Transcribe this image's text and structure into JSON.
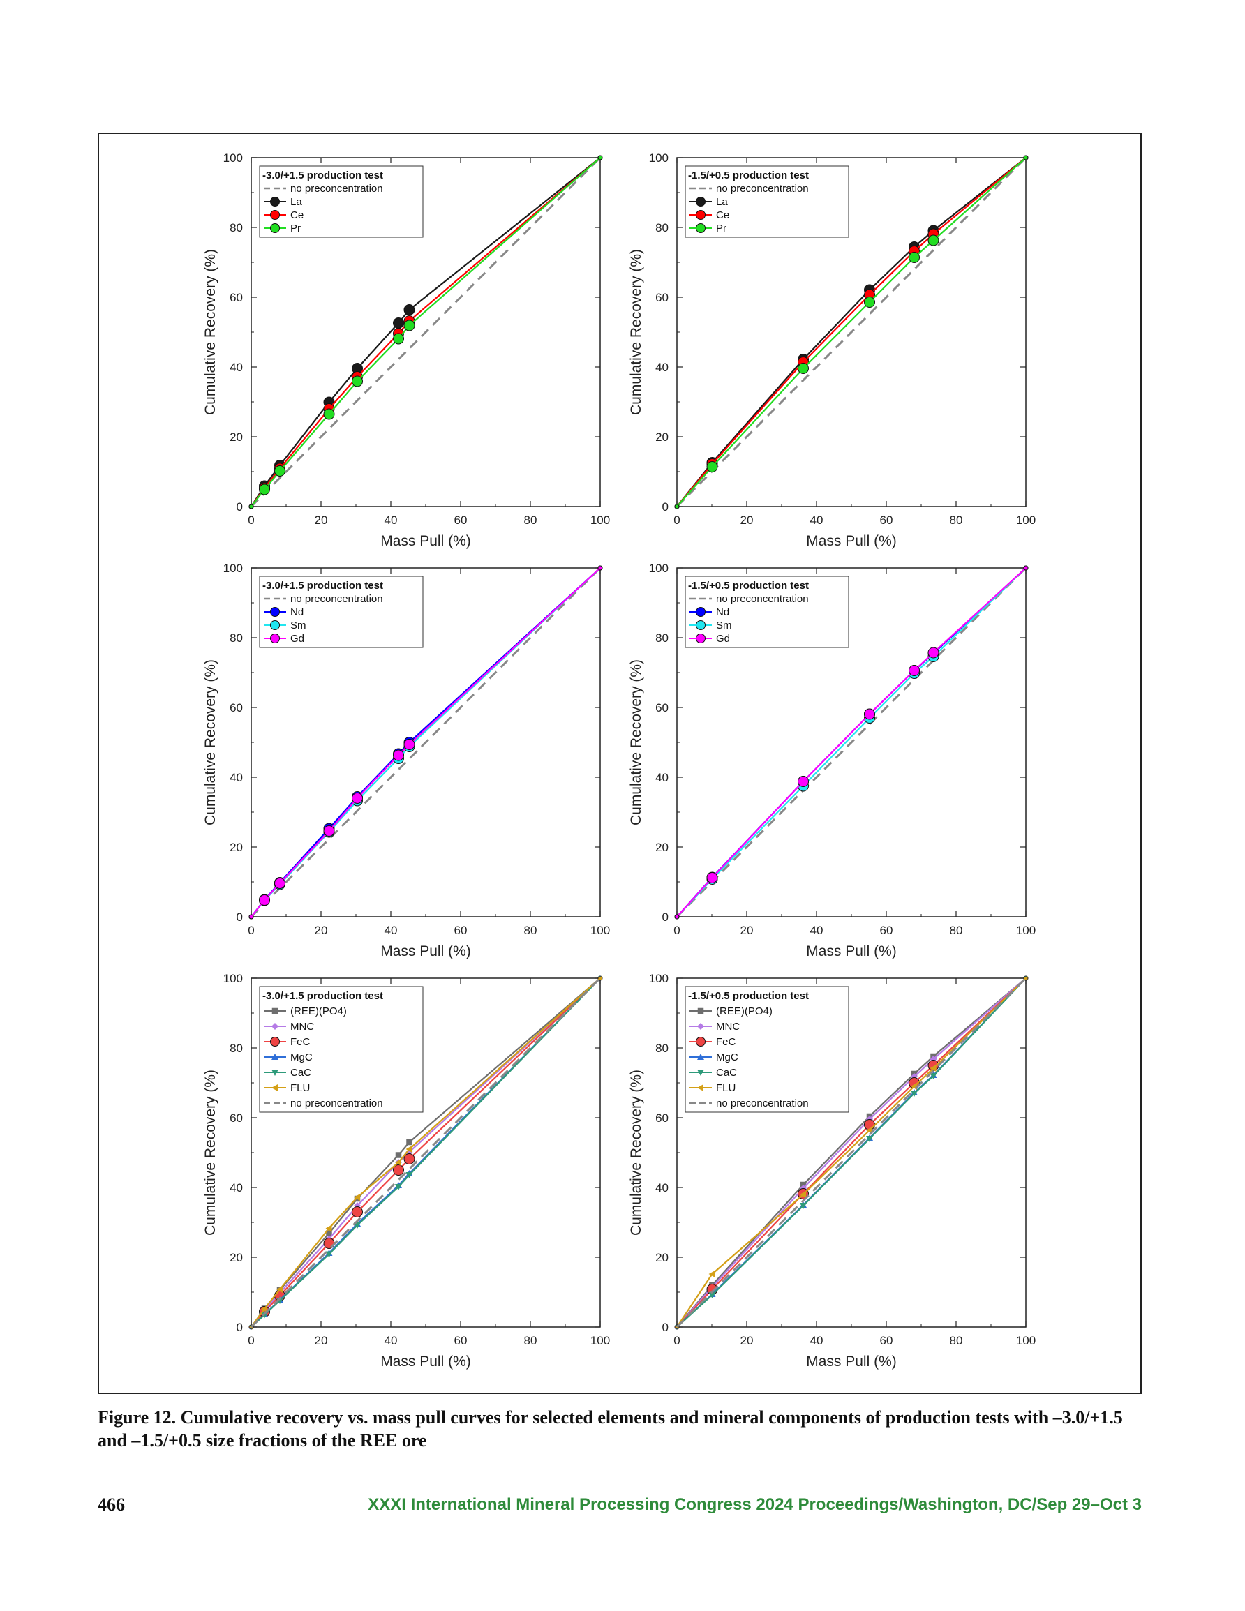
{
  "figure": {
    "caption": "Figure 12.  Cumulative recovery vs. mass pull curves for selected elements and mineral components of production tests with –3.0/+1.5 and –1.5/+0.5 size fractions of the REE ore"
  },
  "footer": {
    "page_number": "466",
    "publication": "XXXI International Mineral Processing Congress 2024 Proceedings/Washington, DC/Sep 29–Oct 3"
  },
  "colors": {
    "La": "#1a1a1a",
    "Ce": "#ff0000",
    "Pr": "#22dd22",
    "Nd": "#0000ff",
    "Sm": "#22e6f0",
    "Gd": "#ff00ff",
    "REEPO4": "#6e6e6e",
    "MNC": "#b57be6",
    "FeC": "#ee4444",
    "MgC": "#2f6fd8",
    "CaC": "#2e9a7a",
    "FLU": "#d4a017",
    "baseline": "#888888"
  },
  "chart_data": [
    {
      "type": "line",
      "legend_title": "-3.0/+1.5 production test",
      "xlabel": "Mass Pull (%)",
      "ylabel": "Cumulative Recovery (%)",
      "xlim": [
        0,
        100
      ],
      "ylim": [
        0,
        100
      ],
      "xticks": [
        0,
        20,
        40,
        60,
        80,
        100
      ],
      "yticks": [
        0,
        20,
        40,
        60,
        80,
        100
      ],
      "legend_position": "top-left",
      "series": [
        {
          "name": "no preconcentration",
          "key": "baseline",
          "dashed": true,
          "marker": "none",
          "x": [
            0,
            100
          ],
          "y": [
            0,
            100
          ]
        },
        {
          "name": "La",
          "key": "La",
          "marker": "circle",
          "x": [
            0,
            3.8,
            8.2,
            22.3,
            30.4,
            42.2,
            45.3,
            100
          ],
          "y": [
            0,
            5.9,
            11.8,
            29.9,
            39.6,
            52.6,
            56.4,
            100
          ]
        },
        {
          "name": "Ce",
          "key": "Ce",
          "marker": "circle",
          "x": [
            0,
            3.8,
            8.2,
            22.3,
            30.4,
            42.2,
            45.3,
            100
          ],
          "y": [
            0,
            5.3,
            10.9,
            28.0,
            37.2,
            49.6,
            53.2,
            100
          ]
        },
        {
          "name": "Pr",
          "key": "Pr",
          "marker": "circle",
          "x": [
            0,
            3.8,
            8.2,
            22.3,
            30.4,
            42.2,
            45.3,
            100
          ],
          "y": [
            0,
            4.9,
            10.2,
            26.5,
            35.9,
            48.1,
            51.9,
            100
          ]
        }
      ]
    },
    {
      "type": "line",
      "legend_title": "-1.5/+0.5 production test",
      "xlabel": "Mass Pull (%)",
      "ylabel": "Cumulative Recovery (%)",
      "xlim": [
        0,
        100
      ],
      "ylim": [
        0,
        100
      ],
      "xticks": [
        0,
        20,
        40,
        60,
        80,
        100
      ],
      "yticks": [
        0,
        20,
        40,
        60,
        80,
        100
      ],
      "legend_position": "top-left",
      "series": [
        {
          "name": "no preconcentration",
          "key": "baseline",
          "dashed": true,
          "marker": "none",
          "x": [
            0,
            100
          ],
          "y": [
            0,
            100
          ]
        },
        {
          "name": "La",
          "key": "La",
          "marker": "circle",
          "x": [
            0,
            10.1,
            36.2,
            55.2,
            68.0,
            73.5,
            100
          ],
          "y": [
            0,
            12.6,
            42.2,
            62.1,
            74.4,
            79.1,
            100
          ]
        },
        {
          "name": "Ce",
          "key": "Ce",
          "marker": "circle",
          "x": [
            0,
            10.1,
            36.2,
            55.2,
            68.0,
            73.5,
            100
          ],
          "y": [
            0,
            12.2,
            41.4,
            60.7,
            73.2,
            78.1,
            100
          ]
        },
        {
          "name": "Pr",
          "key": "Pr",
          "marker": "circle",
          "x": [
            0,
            10.1,
            36.2,
            55.2,
            68.0,
            73.5,
            100
          ],
          "y": [
            0,
            11.4,
            39.6,
            58.6,
            71.4,
            76.3,
            100
          ]
        }
      ]
    },
    {
      "type": "line",
      "legend_title": "-3.0/+1.5 production test",
      "xlabel": "Mass Pull (%)",
      "ylabel": "Cumulative Recovery (%)",
      "xlim": [
        0,
        100
      ],
      "ylim": [
        0,
        100
      ],
      "xticks": [
        0,
        20,
        40,
        60,
        80,
        100
      ],
      "yticks": [
        0,
        20,
        40,
        60,
        80,
        100
      ],
      "legend_position": "top-left",
      "series": [
        {
          "name": "no preconcentration",
          "key": "baseline",
          "dashed": true,
          "marker": "none",
          "x": [
            0,
            100
          ],
          "y": [
            0,
            100
          ]
        },
        {
          "name": "Nd",
          "key": "Nd",
          "marker": "circle",
          "x": [
            0,
            3.8,
            8.2,
            22.3,
            30.4,
            42.2,
            45.3,
            100
          ],
          "y": [
            0,
            4.9,
            9.8,
            25.3,
            34.4,
            46.7,
            50.0,
            100
          ]
        },
        {
          "name": "Sm",
          "key": "Sm",
          "marker": "circle",
          "x": [
            0,
            3.8,
            8.2,
            22.3,
            30.4,
            42.2,
            45.3,
            100
          ],
          "y": [
            0,
            4.7,
            9.3,
            24.3,
            33.3,
            45.4,
            48.8,
            100
          ]
        },
        {
          "name": "Gd",
          "key": "Gd",
          "marker": "circle",
          "x": [
            0,
            3.8,
            8.2,
            22.3,
            30.4,
            42.2,
            45.3,
            100
          ],
          "y": [
            0,
            4.8,
            9.6,
            24.6,
            34.0,
            46.3,
            49.4,
            100
          ]
        }
      ]
    },
    {
      "type": "line",
      "legend_title": "-1.5/+0.5 production test",
      "xlabel": "Mass Pull (%)",
      "ylabel": "Cumulative Recovery (%)",
      "xlim": [
        0,
        100
      ],
      "ylim": [
        0,
        100
      ],
      "xticks": [
        0,
        20,
        40,
        60,
        80,
        100
      ],
      "yticks": [
        0,
        20,
        40,
        60,
        80,
        100
      ],
      "legend_position": "top-left",
      "series": [
        {
          "name": "no preconcentration",
          "key": "baseline",
          "dashed": true,
          "marker": "none",
          "x": [
            0,
            100
          ],
          "y": [
            0,
            100
          ]
        },
        {
          "name": "Nd",
          "key": "Nd",
          "marker": "circle",
          "x": [
            0,
            10.1,
            36.2,
            55.2,
            68.0,
            73.5,
            100
          ],
          "y": [
            0,
            11.3,
            38.8,
            58.1,
            70.6,
            75.5,
            100
          ]
        },
        {
          "name": "Sm",
          "key": "Sm",
          "marker": "circle",
          "x": [
            0,
            10.1,
            36.2,
            55.2,
            68.0,
            73.5,
            100
          ],
          "y": [
            0,
            10.8,
            37.5,
            57.0,
            69.8,
            74.6,
            100
          ]
        },
        {
          "name": "Gd",
          "key": "Gd",
          "marker": "circle",
          "x": [
            0,
            10.1,
            36.2,
            55.2,
            68.0,
            73.5,
            100
          ],
          "y": [
            0,
            11.2,
            38.8,
            58.1,
            70.6,
            75.7,
            100
          ]
        }
      ]
    },
    {
      "type": "line",
      "legend_title": "-3.0/+1.5 production test",
      "xlabel": "Mass Pull (%)",
      "ylabel": "Cumulative Recovery (%)",
      "xlim": [
        0,
        100
      ],
      "ylim": [
        0,
        100
      ],
      "xticks": [
        0,
        20,
        40,
        60,
        80,
        100
      ],
      "yticks": [
        0,
        20,
        40,
        60,
        80,
        100
      ],
      "legend_position": "top-left",
      "series": [
        {
          "name": "(REE)(PO4)",
          "key": "REEPO4",
          "marker": "square",
          "x": [
            0,
            3.8,
            8.2,
            22.3,
            30.4,
            42.2,
            45.3,
            100
          ],
          "y": [
            0,
            5.3,
            10.6,
            26.9,
            36.8,
            49.3,
            53.0,
            100
          ]
        },
        {
          "name": "MNC",
          "key": "MNC",
          "marker": "diamond",
          "x": [
            0,
            3.8,
            8.2,
            22.3,
            30.4,
            42.2,
            45.3,
            100
          ],
          "y": [
            0,
            4.8,
            9.8,
            25.3,
            34.8,
            47.2,
            50.2,
            100
          ]
        },
        {
          "name": "FeC",
          "key": "FeC",
          "marker": "circle",
          "x": [
            0,
            3.8,
            8.2,
            22.3,
            30.4,
            42.2,
            45.3,
            100
          ],
          "y": [
            0,
            4.4,
            9.0,
            24.0,
            33.0,
            45.0,
            48.2,
            100
          ]
        },
        {
          "name": "MgC",
          "key": "MgC",
          "marker": "triangle",
          "x": [
            0,
            3.8,
            8.2,
            22.3,
            30.4,
            42.2,
            45.3,
            100
          ],
          "y": [
            0,
            3.6,
            7.8,
            21.2,
            29.6,
            40.6,
            44.0,
            100
          ]
        },
        {
          "name": "CaC",
          "key": "CaC",
          "marker": "triangle-down",
          "x": [
            0,
            3.8,
            8.2,
            22.3,
            30.4,
            42.2,
            45.3,
            100
          ],
          "y": [
            0,
            3.5,
            7.6,
            20.9,
            29.2,
            40.2,
            43.6,
            100
          ]
        },
        {
          "name": "FLU",
          "key": "FLU",
          "marker": "triangle-left",
          "x": [
            0,
            3.8,
            8.2,
            22.3,
            30.4,
            42.2,
            45.3,
            100
          ],
          "y": [
            0,
            5.2,
            10.8,
            28.3,
            37.2,
            47.2,
            51.0,
            100
          ]
        },
        {
          "name": "no preconcentration",
          "key": "baseline",
          "dashed": true,
          "marker": "none",
          "x": [
            0,
            100
          ],
          "y": [
            0,
            100
          ]
        }
      ]
    },
    {
      "type": "line",
      "legend_title": "-1.5/+0.5 production test",
      "xlabel": "Mass Pull (%)",
      "ylabel": "Cumulative Recovery (%)",
      "xlim": [
        0,
        100
      ],
      "ylim": [
        0,
        100
      ],
      "xticks": [
        0,
        20,
        40,
        60,
        80,
        100
      ],
      "yticks": [
        0,
        20,
        40,
        60,
        80,
        100
      ],
      "legend_position": "top-left",
      "series": [
        {
          "name": "(REE)(PO4)",
          "key": "REEPO4",
          "marker": "square",
          "x": [
            0,
            10.1,
            36.2,
            55.2,
            68.0,
            73.5,
            100
          ],
          "y": [
            0,
            12.0,
            40.8,
            60.4,
            72.6,
            77.6,
            100
          ]
        },
        {
          "name": "MNC",
          "key": "MNC",
          "marker": "diamond",
          "x": [
            0,
            10.1,
            36.2,
            55.2,
            68.0,
            73.5,
            100
          ],
          "y": [
            0,
            11.5,
            39.8,
            59.6,
            71.8,
            76.8,
            100
          ]
        },
        {
          "name": "FeC",
          "key": "FeC",
          "marker": "circle",
          "x": [
            0,
            10.1,
            36.2,
            55.2,
            68.0,
            73.5,
            100
          ],
          "y": [
            0,
            10.8,
            38.2,
            58.0,
            70.0,
            75.0,
            100
          ]
        },
        {
          "name": "MgC",
          "key": "MgC",
          "marker": "triangle",
          "x": [
            0,
            10.1,
            36.2,
            55.2,
            68.0,
            73.5,
            100
          ],
          "y": [
            0,
            9.4,
            35.0,
            54.2,
            67.2,
            72.2,
            100
          ]
        },
        {
          "name": "CaC",
          "key": "CaC",
          "marker": "triangle-down",
          "x": [
            0,
            10.1,
            36.2,
            55.2,
            68.0,
            73.5,
            100
          ],
          "y": [
            0,
            9.2,
            34.8,
            54.0,
            67.0,
            72.0,
            100
          ]
        },
        {
          "name": "FLU",
          "key": "FLU",
          "marker": "triangle-left",
          "x": [
            0,
            10.1,
            36.2,
            55.2,
            68.0,
            73.5,
            100
          ],
          "y": [
            0,
            15.2,
            38.0,
            56.4,
            69.0,
            74.2,
            100
          ]
        },
        {
          "name": "no preconcentration",
          "key": "baseline",
          "dashed": true,
          "marker": "none",
          "x": [
            0,
            100
          ],
          "y": [
            0,
            100
          ]
        }
      ]
    }
  ]
}
